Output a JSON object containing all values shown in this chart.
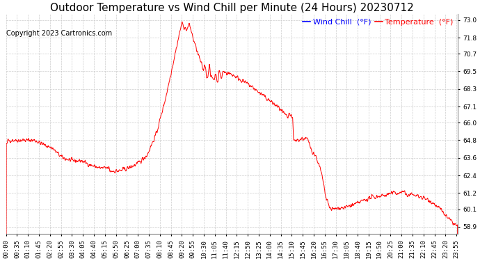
{
  "title": "Outdoor Temperature vs Wind Chill per Minute (24 Hours) 20230712",
  "copyright": "Copyright 2023 Cartronics.com",
  "legend_wind_chill": "Wind Chill  (°F)",
  "legend_temperature": "Temperature  (°F)",
  "wind_chill_color": "blue",
  "temperature_color": "red",
  "ylabel_right_ticks": [
    73.0,
    71.8,
    70.7,
    69.5,
    68.3,
    67.1,
    66.0,
    64.8,
    63.6,
    62.4,
    61.2,
    60.1,
    58.9
  ],
  "ylim": [
    58.4,
    73.4
  ],
  "background_color": "#ffffff",
  "grid_color": "#cccccc",
  "line_color": "red",
  "title_fontsize": 11,
  "copyright_fontsize": 7,
  "legend_fontsize": 8,
  "tick_fontsize": 6.5
}
